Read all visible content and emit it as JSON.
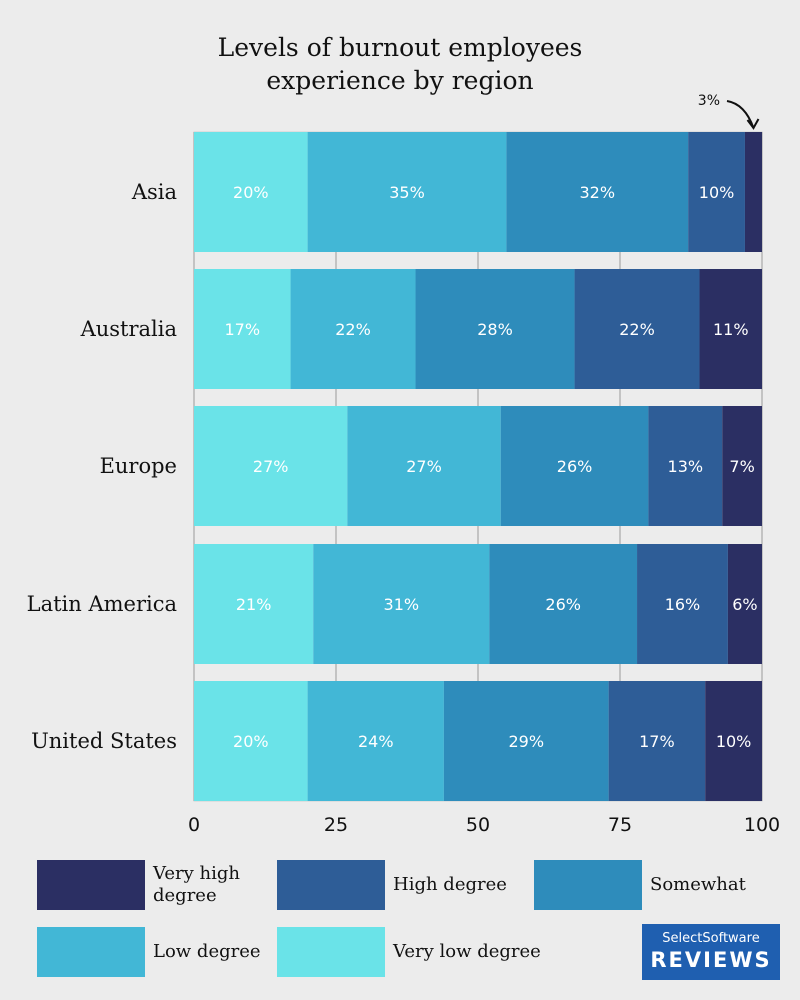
{
  "chart_data": {
    "type": "bar",
    "orientation": "horizontal",
    "stacked": true,
    "title": "Levels of burnout employees experience by region",
    "title_lines": [
      "Levels of burnout employees",
      "experience by region"
    ],
    "categories": [
      "Asia",
      "Australia",
      "Europe",
      "Latin America",
      "United States"
    ],
    "series": [
      {
        "name": "Very low degree",
        "color": "#6ae3e8",
        "values": [
          20,
          17,
          27,
          21,
          20
        ]
      },
      {
        "name": "Low degree",
        "color": "#42b7d6",
        "values": [
          35,
          22,
          27,
          31,
          24
        ]
      },
      {
        "name": "Somewhat",
        "color": "#2e8cbb",
        "values": [
          32,
          28,
          26,
          26,
          29
        ]
      },
      {
        "name": "High degree",
        "color": "#2e5d97",
        "values": [
          10,
          22,
          13,
          16,
          17
        ]
      },
      {
        "name": "Very high degree",
        "color": "#2b2f63",
        "values": [
          3,
          11,
          7,
          6,
          10
        ]
      }
    ],
    "data_labels": [
      [
        "20%",
        "35%",
        "32%",
        "10%",
        ""
      ],
      [
        "17%",
        "22%",
        "28%",
        "22%",
        "11%"
      ],
      [
        "27%",
        "27%",
        "26%",
        "13%",
        "7%"
      ],
      [
        "21%",
        "31%",
        "26%",
        "16%",
        "6%"
      ],
      [
        "20%",
        "24%",
        "29%",
        "17%",
        "10%"
      ]
    ],
    "annotation": {
      "text": "3%",
      "category": "Asia",
      "series": "Very high degree"
    },
    "xlim": [
      0,
      100
    ],
    "xticks": [
      "0",
      "25",
      "50",
      "75",
      "100"
    ],
    "grid": true,
    "legend_position": "bottom"
  },
  "legend": {
    "items": [
      {
        "label_lines": [
          "Very high",
          "degree"
        ],
        "color": "#2b2f63"
      },
      {
        "label_lines": [
          "High degree"
        ],
        "color": "#2e5d97"
      },
      {
        "label_lines": [
          "Somewhat"
        ],
        "color": "#2e8cbb"
      },
      {
        "label_lines": [
          "Low degree"
        ],
        "color": "#42b7d6"
      },
      {
        "label_lines": [
          "Very low degree"
        ],
        "color": "#6ae3e8"
      }
    ]
  },
  "logo": {
    "line1": "SelectSoftware",
    "line2": "REVIEWS"
  }
}
